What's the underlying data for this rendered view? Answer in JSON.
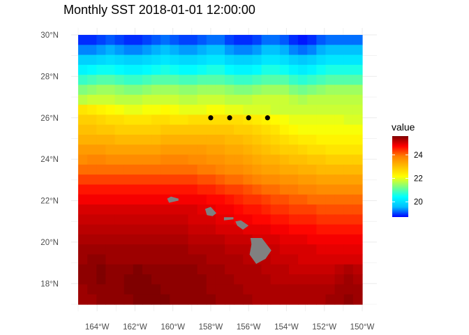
{
  "chart_data": {
    "type": "heatmap",
    "title": "Monthly SST 2018-01-01 12:00:00",
    "xlabel": "",
    "ylabel": "",
    "x_ticks": [
      {
        "value": -164,
        "label": "164°W"
      },
      {
        "value": -162,
        "label": "162°W"
      },
      {
        "value": -160,
        "label": "160°W"
      },
      {
        "value": -158,
        "label": "158°W"
      },
      {
        "value": -156,
        "label": "156°W"
      },
      {
        "value": -154,
        "label": "154°W"
      },
      {
        "value": -152,
        "label": "152°W"
      },
      {
        "value": -150,
        "label": "150°W"
      }
    ],
    "y_ticks": [
      {
        "value": 18,
        "label": "18°N"
      },
      {
        "value": 20,
        "label": "20°N"
      },
      {
        "value": 22,
        "label": "22°N"
      },
      {
        "value": 24,
        "label": "24°N"
      },
      {
        "value": 26,
        "label": "26°N"
      },
      {
        "value": 28,
        "label": "28°N"
      },
      {
        "value": 30,
        "label": "30°N"
      }
    ],
    "xlim": [
      -165,
      -150
    ],
    "ylim": [
      17,
      30
    ],
    "value_range": [
      18.7,
      25.6
    ],
    "value_grid": {
      "lon_step": 0.5,
      "lat_values": [
        30,
        29.5,
        29,
        28.5,
        28,
        27.5,
        27,
        26.5,
        26,
        25.5,
        25,
        24.5,
        24,
        23.5,
        23,
        22.5,
        22,
        21.5,
        21,
        20.5,
        20,
        19.5,
        19,
        18.5,
        18,
        17.5,
        17
      ],
      "rows": [
        [
          18.9,
          18.9,
          19.0,
          19.1,
          19.0,
          18.9,
          18.9,
          19.0,
          19.1,
          19.2,
          19.1,
          19.0,
          19.0,
          19.1,
          19.2,
          19.2,
          19.0,
          18.9,
          18.9,
          19.0,
          19.2,
          19.2,
          19.1,
          18.9,
          18.8,
          18.9,
          19.1,
          19.2,
          19.2,
          19.2,
          19.2
        ],
        [
          19.3,
          19.3,
          19.4,
          19.5,
          19.4,
          19.3,
          19.3,
          19.4,
          19.5,
          19.6,
          19.5,
          19.4,
          19.4,
          19.5,
          19.6,
          19.6,
          19.4,
          19.3,
          19.3,
          19.4,
          19.6,
          19.6,
          19.5,
          19.3,
          19.2,
          19.3,
          19.5,
          19.6,
          19.6,
          19.6,
          19.6
        ],
        [
          19.8,
          19.8,
          19.9,
          20.0,
          19.9,
          19.8,
          19.8,
          19.9,
          20.0,
          20.1,
          20.0,
          19.9,
          19.9,
          20.0,
          20.1,
          20.1,
          19.9,
          19.8,
          19.8,
          19.9,
          20.1,
          20.1,
          20.0,
          19.8,
          19.7,
          19.8,
          20.0,
          20.1,
          20.1,
          20.1,
          20.1
        ],
        [
          20.3,
          20.4,
          20.5,
          20.5,
          20.4,
          20.3,
          20.3,
          20.4,
          20.5,
          20.6,
          20.5,
          20.4,
          20.4,
          20.5,
          20.6,
          20.6,
          20.4,
          20.3,
          20.3,
          20.4,
          20.6,
          20.6,
          20.5,
          20.3,
          20.2,
          20.3,
          20.5,
          20.6,
          20.6,
          20.6,
          20.6
        ],
        [
          20.8,
          20.9,
          21.0,
          21.0,
          20.9,
          20.8,
          20.8,
          20.9,
          21.0,
          21.0,
          21.0,
          20.9,
          20.9,
          21.0,
          21.0,
          21.0,
          20.9,
          20.8,
          20.8,
          20.9,
          21.0,
          21.0,
          21.0,
          20.8,
          20.7,
          20.8,
          20.9,
          21.0,
          21.0,
          21.0,
          21.0
        ],
        [
          21.3,
          21.4,
          21.5,
          21.5,
          21.4,
          21.3,
          21.3,
          21.4,
          21.5,
          21.5,
          21.5,
          21.4,
          21.4,
          21.5,
          21.5,
          21.5,
          21.4,
          21.3,
          21.3,
          21.4,
          21.5,
          21.5,
          21.5,
          21.3,
          21.2,
          21.3,
          21.4,
          21.5,
          21.5,
          21.5,
          21.5
        ],
        [
          21.7,
          21.8,
          21.8,
          21.8,
          21.7,
          21.7,
          21.7,
          21.8,
          21.8,
          21.8,
          21.8,
          21.7,
          21.7,
          21.8,
          21.8,
          21.8,
          21.7,
          21.7,
          21.7,
          21.8,
          21.8,
          21.8,
          21.8,
          21.7,
          21.6,
          21.7,
          21.7,
          21.7,
          21.7,
          21.7,
          21.7
        ],
        [
          22.5,
          22.4,
          22.3,
          22.2,
          22.1,
          22.0,
          22.0,
          22.1,
          22.1,
          22.2,
          22.1,
          22.0,
          22.0,
          22.0,
          22.1,
          22.1,
          22.0,
          22.0,
          21.9,
          21.9,
          21.9,
          21.8,
          21.8,
          21.8,
          21.8,
          21.8,
          21.8,
          21.8,
          21.8,
          21.8,
          21.8
        ],
        [
          22.8,
          22.8,
          22.7,
          22.6,
          22.6,
          22.5,
          22.5,
          22.5,
          22.6,
          22.6,
          22.5,
          22.5,
          22.6,
          22.6,
          22.6,
          22.6,
          22.6,
          22.6,
          22.5,
          22.4,
          22.3,
          22.2,
          22.1,
          22.0,
          22.0,
          22.0,
          22.0,
          22.0,
          22.0,
          21.9,
          21.9
        ],
        [
          23.0,
          23.0,
          22.9,
          22.9,
          22.8,
          22.8,
          22.8,
          22.8,
          22.8,
          22.9,
          22.9,
          22.9,
          22.9,
          22.9,
          22.9,
          22.9,
          22.9,
          22.8,
          22.8,
          22.7,
          22.6,
          22.5,
          22.3,
          22.2,
          22.1,
          22.1,
          22.1,
          22.1,
          22.1,
          22.1,
          22.1
        ],
        [
          23.2,
          23.2,
          23.2,
          23.2,
          23.1,
          23.1,
          23.1,
          23.1,
          23.1,
          23.2,
          23.2,
          23.2,
          23.2,
          23.2,
          23.2,
          23.2,
          23.1,
          23.1,
          23.0,
          22.9,
          22.8,
          22.7,
          22.6,
          22.5,
          22.4,
          22.4,
          22.3,
          22.3,
          22.3,
          22.3,
          22.3
        ],
        [
          23.5,
          23.5,
          23.5,
          23.4,
          23.4,
          23.4,
          23.4,
          23.4,
          23.4,
          23.5,
          23.5,
          23.5,
          23.5,
          23.5,
          23.4,
          23.4,
          23.3,
          23.3,
          23.2,
          23.1,
          23.0,
          22.9,
          22.8,
          22.8,
          22.7,
          22.6,
          22.6,
          22.5,
          22.5,
          22.5,
          22.5
        ],
        [
          23.7,
          23.8,
          23.8,
          23.7,
          23.7,
          23.7,
          23.7,
          23.7,
          23.7,
          23.8,
          23.8,
          23.8,
          23.7,
          23.7,
          23.6,
          23.6,
          23.5,
          23.5,
          23.4,
          23.3,
          23.2,
          23.2,
          23.1,
          23.0,
          23.0,
          22.9,
          22.9,
          22.8,
          22.8,
          22.8,
          22.8
        ],
        [
          24.0,
          24.0,
          24.0,
          24.0,
          24.0,
          24.0,
          24.0,
          24.0,
          24.0,
          24.0,
          24.0,
          24.0,
          24.0,
          23.9,
          23.9,
          23.8,
          23.7,
          23.7,
          23.6,
          23.5,
          23.4,
          23.4,
          23.3,
          23.3,
          23.2,
          23.2,
          23.1,
          23.1,
          23.1,
          23.1,
          23.1
        ],
        [
          24.3,
          24.3,
          24.3,
          24.3,
          24.3,
          24.3,
          24.3,
          24.3,
          24.3,
          24.3,
          24.3,
          24.3,
          24.3,
          24.2,
          24.2,
          24.1,
          24.0,
          24.0,
          23.9,
          23.8,
          23.7,
          23.7,
          23.6,
          23.6,
          23.5,
          23.5,
          23.4,
          23.4,
          23.4,
          23.4,
          23.4
        ],
        [
          24.6,
          24.6,
          24.6,
          24.6,
          24.6,
          24.6,
          24.6,
          24.6,
          24.6,
          24.6,
          24.6,
          24.6,
          24.6,
          24.5,
          24.5,
          24.4,
          24.3,
          24.3,
          24.2,
          24.1,
          24.0,
          24.0,
          23.9,
          23.9,
          23.8,
          23.8,
          23.7,
          23.7,
          23.7,
          23.7,
          23.7
        ],
        [
          24.8,
          24.8,
          24.8,
          24.8,
          24.8,
          24.8,
          24.8,
          24.8,
          24.8,
          24.8,
          24.8,
          24.8,
          24.8,
          24.8,
          24.7,
          24.7,
          24.6,
          24.5,
          24.4,
          24.4,
          24.3,
          24.2,
          24.2,
          24.1,
          24.1,
          24.0,
          24.0,
          24.0,
          24.0,
          24.0,
          24.0
        ],
        [
          25.0,
          25.0,
          25.0,
          25.0,
          25.0,
          25.0,
          25.0,
          25.0,
          25.0,
          25.0,
          25.0,
          25.0,
          25.0,
          24.9,
          24.9,
          24.8,
          24.8,
          24.7,
          24.6,
          24.6,
          24.5,
          24.4,
          24.4,
          24.3,
          24.3,
          24.3,
          24.2,
          24.2,
          24.2,
          24.2,
          24.2
        ],
        [
          25.1,
          25.1,
          25.1,
          25.1,
          25.1,
          25.1,
          25.1,
          25.1,
          25.1,
          25.1,
          25.1,
          25.1,
          25.0,
          25.0,
          25.0,
          24.9,
          24.9,
          24.8,
          24.8,
          24.7,
          24.7,
          24.6,
          24.6,
          24.5,
          24.5,
          24.5,
          24.4,
          24.4,
          24.4,
          24.4,
          24.4
        ],
        [
          25.2,
          25.2,
          25.2,
          25.2,
          25.2,
          25.2,
          25.2,
          25.2,
          25.2,
          25.2,
          25.2,
          25.2,
          25.1,
          25.1,
          25.1,
          25.0,
          25.0,
          25.0,
          24.9,
          24.9,
          24.9,
          24.8,
          24.8,
          24.7,
          24.7,
          24.7,
          24.6,
          24.6,
          24.6,
          24.6,
          24.6
        ],
        [
          25.3,
          25.3,
          25.3,
          25.3,
          25.3,
          25.3,
          25.3,
          25.3,
          25.3,
          25.3,
          25.3,
          25.3,
          25.2,
          25.2,
          25.2,
          25.2,
          25.1,
          25.1,
          25.1,
          25.0,
          25.0,
          25.0,
          24.9,
          24.9,
          24.9,
          24.8,
          24.8,
          24.8,
          24.8,
          24.8,
          24.8
        ],
        [
          25.4,
          25.4,
          25.4,
          25.4,
          25.4,
          25.4,
          25.4,
          25.4,
          25.4,
          25.4,
          25.4,
          25.4,
          25.3,
          25.3,
          25.3,
          25.3,
          25.2,
          25.2,
          25.2,
          25.1,
          25.1,
          25.1,
          25.0,
          25.0,
          25.0,
          25.0,
          24.9,
          24.9,
          24.9,
          24.9,
          24.9
        ],
        [
          25.4,
          25.5,
          25.5,
          25.4,
          25.4,
          25.4,
          25.4,
          25.4,
          25.4,
          25.4,
          25.4,
          25.4,
          25.4,
          25.4,
          25.3,
          25.3,
          25.3,
          25.3,
          25.2,
          25.2,
          25.2,
          25.1,
          25.1,
          25.1,
          25.0,
          25.0,
          25.0,
          25.0,
          25.0,
          25.0,
          25.0
        ],
        [
          25.5,
          25.5,
          25.6,
          25.5,
          25.5,
          25.5,
          25.6,
          25.5,
          25.5,
          25.5,
          25.5,
          25.5,
          25.5,
          25.4,
          25.4,
          25.4,
          25.3,
          25.3,
          25.3,
          25.3,
          25.2,
          25.2,
          25.2,
          25.1,
          25.1,
          25.1,
          25.1,
          25.1,
          25.2,
          25.3,
          25.2
        ],
        [
          25.5,
          25.5,
          25.6,
          25.5,
          25.5,
          25.6,
          25.6,
          25.6,
          25.5,
          25.5,
          25.5,
          25.5,
          25.5,
          25.5,
          25.4,
          25.4,
          25.4,
          25.3,
          25.3,
          25.3,
          25.3,
          25.2,
          25.2,
          25.2,
          25.2,
          25.2,
          25.2,
          25.2,
          25.3,
          25.4,
          25.3
        ],
        [
          25.4,
          25.5,
          25.5,
          25.5,
          25.5,
          25.6,
          25.6,
          25.6,
          25.6,
          25.5,
          25.5,
          25.5,
          25.5,
          25.5,
          25.4,
          25.4,
          25.4,
          25.4,
          25.3,
          25.3,
          25.3,
          25.3,
          25.3,
          25.3,
          25.3,
          25.3,
          25.3,
          25.3,
          25.4,
          25.4,
          25.4
        ],
        [
          25.4,
          25.4,
          25.5,
          25.5,
          25.5,
          25.5,
          25.6,
          25.6,
          25.6,
          25.6,
          25.5,
          25.5,
          25.5,
          25.5,
          25.5,
          25.4,
          25.4,
          25.4,
          25.4,
          25.3,
          25.3,
          25.3,
          25.3,
          25.3,
          25.3,
          25.3,
          25.3,
          25.4,
          25.4,
          25.5,
          25.4
        ]
      ]
    },
    "land_color": "#808080",
    "points": [
      {
        "x": -158,
        "y": 26
      },
      {
        "x": -157,
        "y": 26
      },
      {
        "x": -156,
        "y": 26
      },
      {
        "x": -155,
        "y": 26
      }
    ],
    "grid": true,
    "legend": {
      "title": "value",
      "placement": "right",
      "breaks": [
        {
          "value": 20,
          "label": "20"
        },
        {
          "value": 22,
          "label": "22"
        },
        {
          "value": 24,
          "label": "24"
        }
      ],
      "colors": [
        "#0000ff",
        "#00bfff",
        "#00ffff",
        "#7fff7f",
        "#ffff00",
        "#ffbf00",
        "#ff7f00",
        "#ff0000",
        "#7f0000"
      ]
    }
  }
}
